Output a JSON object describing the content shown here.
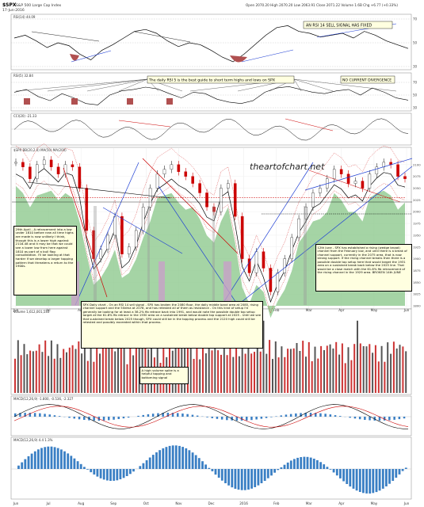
{
  "header": {
    "symbol": "$SPX",
    "name": "S&P 500 Large Cap Index",
    "exchange": "INDX",
    "date": "17-Jun-2016",
    "ohlc": "Open 2070.20  High 2070.20  Low 2063.91  Close 2071.22  Volume 1.6B  Chg +6.77 (+0.33%)"
  },
  "panels": {
    "rsi14": {
      "label": "RSI(14) 44.09",
      "annotation": "AN RSI 14 SELL SIGNAL HAS FIXED",
      "levels": [
        "70",
        "50",
        "30"
      ]
    },
    "rsi5": {
      "label": "RSI(5) 32.84",
      "annotation": "The daily RSI 5 is the best guide to short term highs and lows on SPX",
      "annotation2": "NO CURRENT DIVERGENCE",
      "levels": [
        "70",
        "50",
        "30"
      ]
    },
    "cci": {
      "label": "CCI(20) -21.33"
    },
    "main": {
      "label": "$SPX  BB(20,2.0) MA(50) MA(200)",
      "watermark": "theartofchart.net",
      "note_left": "29th April - A retracement into a low under 1810 before new all time highs are made is now unlikely I think, though this is a lower high against 2116.48 and it may be that we could see a lower low from here against 1810 as part of a bull flag consolidation. I'll be looking at that harder if we develop a larger topping pattern that threatens a return to the 1900s.",
      "note_right": "12th June - SPX has established a rising (wedge broad) channel from the February low, and until there is a break of channel support, currently in the 2075 area, that is now strong support. If the rising channel breaks then there is a possible double top setup here that would target the 1931 area on a sustained break back below the 2025 line. That would be a close match with the 61.8% fib retracement of the rising channel in the 1929 area. BROKEN 14th JUNE",
      "note_bottom": "SPX Daily chart - On an RSI 14 sell signal - SPX has broken the 2080 floor, the daily middle band area at 2085, rising channel support and the 50dma at 2078, and has retested all of them as resistance - On this kind of setup I'd generally be looking for at least a 38.2% fib retrace back into 1991, and would note the possible double top setup target at the 61.8% fib retrace in the 1930 area on a sustained break below double top support at 2025 - Until we see that sustained break below 2025 though, SPX could still be in the topping process and the 2120 high could still be retested and possibly exceeded within that process.",
      "note_volume": "A high volume spike is a helpful topping and bottoming signal",
      "price_axis": [
        "2100",
        "2075",
        "2050",
        "2025",
        "2000",
        "1975",
        "1950",
        "1925",
        "1900",
        "1875",
        "1850",
        "1825",
        "1800"
      ]
    },
    "volume": {
      "label": "Volume 1,612,001,553"
    },
    "macd": {
      "label": "MACD(12,26,9) -1.800, -0.536, -2.327"
    },
    "macd2": {
      "label": "MACD(12,26,9) 4.4 1.3%"
    }
  },
  "months": [
    "Jun",
    "Jul",
    "Aug",
    "Sep",
    "Oct",
    "Nov",
    "Dec",
    "2016",
    "Feb",
    "Mar",
    "Apr",
    "May",
    "Jun"
  ],
  "colors": {
    "up": "#333333",
    "down": "#cc0000",
    "green_fill": "#8fc98f",
    "volume_red": "#cc3333",
    "blue_line": "#1f3fd4",
    "red_line": "#cc0000",
    "pink_hist": "#c8a0c8",
    "annot_yellow": "#ffffe0"
  },
  "chart_data": [
    {
      "type": "line",
      "title": "RSI(14)",
      "ylim": [
        30,
        70
      ],
      "series": [
        {
          "values": [
            55,
            58,
            52,
            45,
            50,
            47,
            38,
            32,
            42,
            48,
            55,
            62,
            64,
            60,
            52,
            46,
            50,
            48,
            42,
            35,
            30,
            38,
            48,
            58,
            66,
            68,
            62,
            60,
            56,
            58,
            60,
            55,
            62,
            58,
            52,
            48,
            44
          ]
        }
      ]
    },
    {
      "type": "line",
      "title": "RSI(5)",
      "ylim": [
        10,
        90
      ],
      "series": [
        {
          "values": [
            60,
            70,
            45,
            30,
            55,
            40,
            20,
            15,
            50,
            65,
            70,
            78,
            72,
            55,
            40,
            60,
            55,
            35,
            25,
            20,
            30,
            60,
            75,
            80,
            70,
            60,
            55,
            65,
            70,
            50,
            75,
            60,
            40,
            32
          ]
        }
      ]
    },
    {
      "type": "candlestick",
      "title": "$SPX daily",
      "ylim": [
        1800,
        2130
      ],
      "series": [
        {
          "name": "close",
          "values": [
            2105,
            2095,
            2070,
            2100,
            2110,
            2095,
            2080,
            2100,
            2095,
            2050,
            1960,
            1900,
            1920,
            1950,
            1990,
            1910,
            1925,
            1960,
            2010,
            2050,
            2080,
            2090,
            2100,
            2085,
            2075,
            2060,
            2040,
            2010,
            2000,
            2050,
            2060,
            1990,
            1900,
            1870,
            1915,
            1880,
            1830,
            1870,
            1900,
            1945,
            1985,
            2010,
            2040,
            2050,
            2070,
            2090,
            2080,
            2060,
            2065,
            2050,
            2080,
            2095,
            2105,
            2100,
            2075,
            2070
          ]
        }
      ]
    },
    {
      "type": "bar",
      "title": "Volume"
    },
    {
      "type": "line",
      "title": "MACD",
      "ylim": [
        -1,
        1
      ]
    }
  ]
}
